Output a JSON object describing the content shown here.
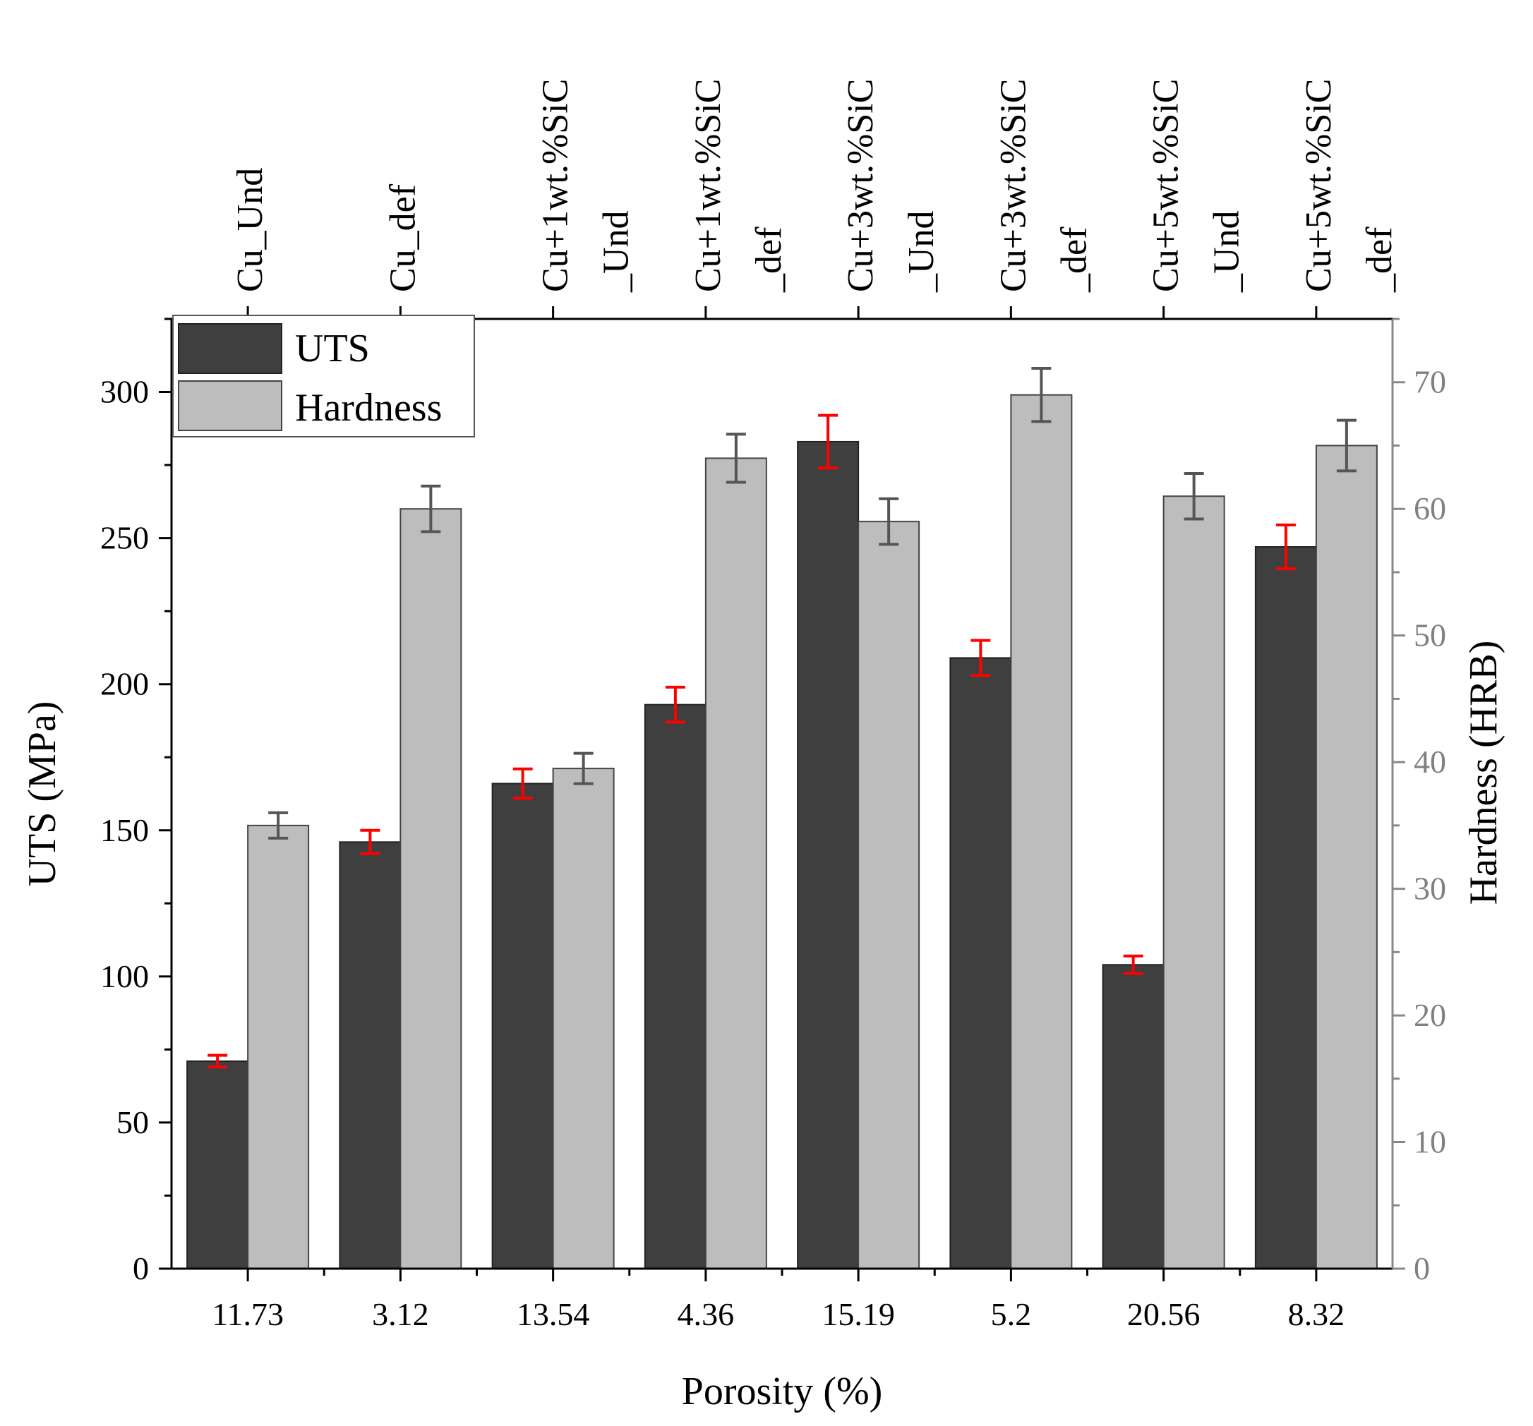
{
  "chart_data": {
    "type": "bar",
    "xlabel": "Porosity (%)",
    "ylabel": "UTS (MPa)",
    "y2label": "Hardness (HRB)",
    "categories": [
      "11.73",
      "3.12",
      "13.54",
      "4.36",
      "15.19",
      "5.2",
      "20.56",
      "8.32"
    ],
    "top_categories": [
      [
        "Cu_Und"
      ],
      [
        "Cu_def"
      ],
      [
        "Cu+1wt.%SiC",
        "_Und"
      ],
      [
        "Cu+1wt.%SiC",
        "_def"
      ],
      [
        "Cu+3wt.%SiC",
        "_Und"
      ],
      [
        "Cu+3wt.%SiC",
        "_def"
      ],
      [
        "Cu+5wt.%SiC",
        "_Und"
      ],
      [
        "Cu+5wt.%SiC",
        "_def"
      ]
    ],
    "ylim": [
      0,
      325
    ],
    "yticks": [
      0,
      50,
      100,
      150,
      200,
      250,
      300
    ],
    "y2lim": [
      0,
      75
    ],
    "y2ticks": [
      0,
      10,
      20,
      30,
      40,
      50,
      60,
      70
    ],
    "legend_position": "top-left",
    "series": [
      {
        "name": "UTS",
        "axis": "left",
        "color": "#3f3f3f",
        "error_color": "#ff0000",
        "values": [
          71,
          146,
          166,
          193,
          283,
          209,
          104,
          247
        ],
        "errors": [
          2,
          4,
          5,
          6,
          9,
          6,
          3,
          7.5
        ]
      },
      {
        "name": "Hardness",
        "axis": "right",
        "color": "#bdbdbd",
        "error_color": "#555555",
        "values": [
          35,
          60,
          39.5,
          64,
          59,
          69,
          61,
          65
        ],
        "errors": [
          1,
          1.8,
          1.2,
          1.9,
          1.8,
          2.1,
          1.8,
          2.0
        ]
      }
    ]
  }
}
